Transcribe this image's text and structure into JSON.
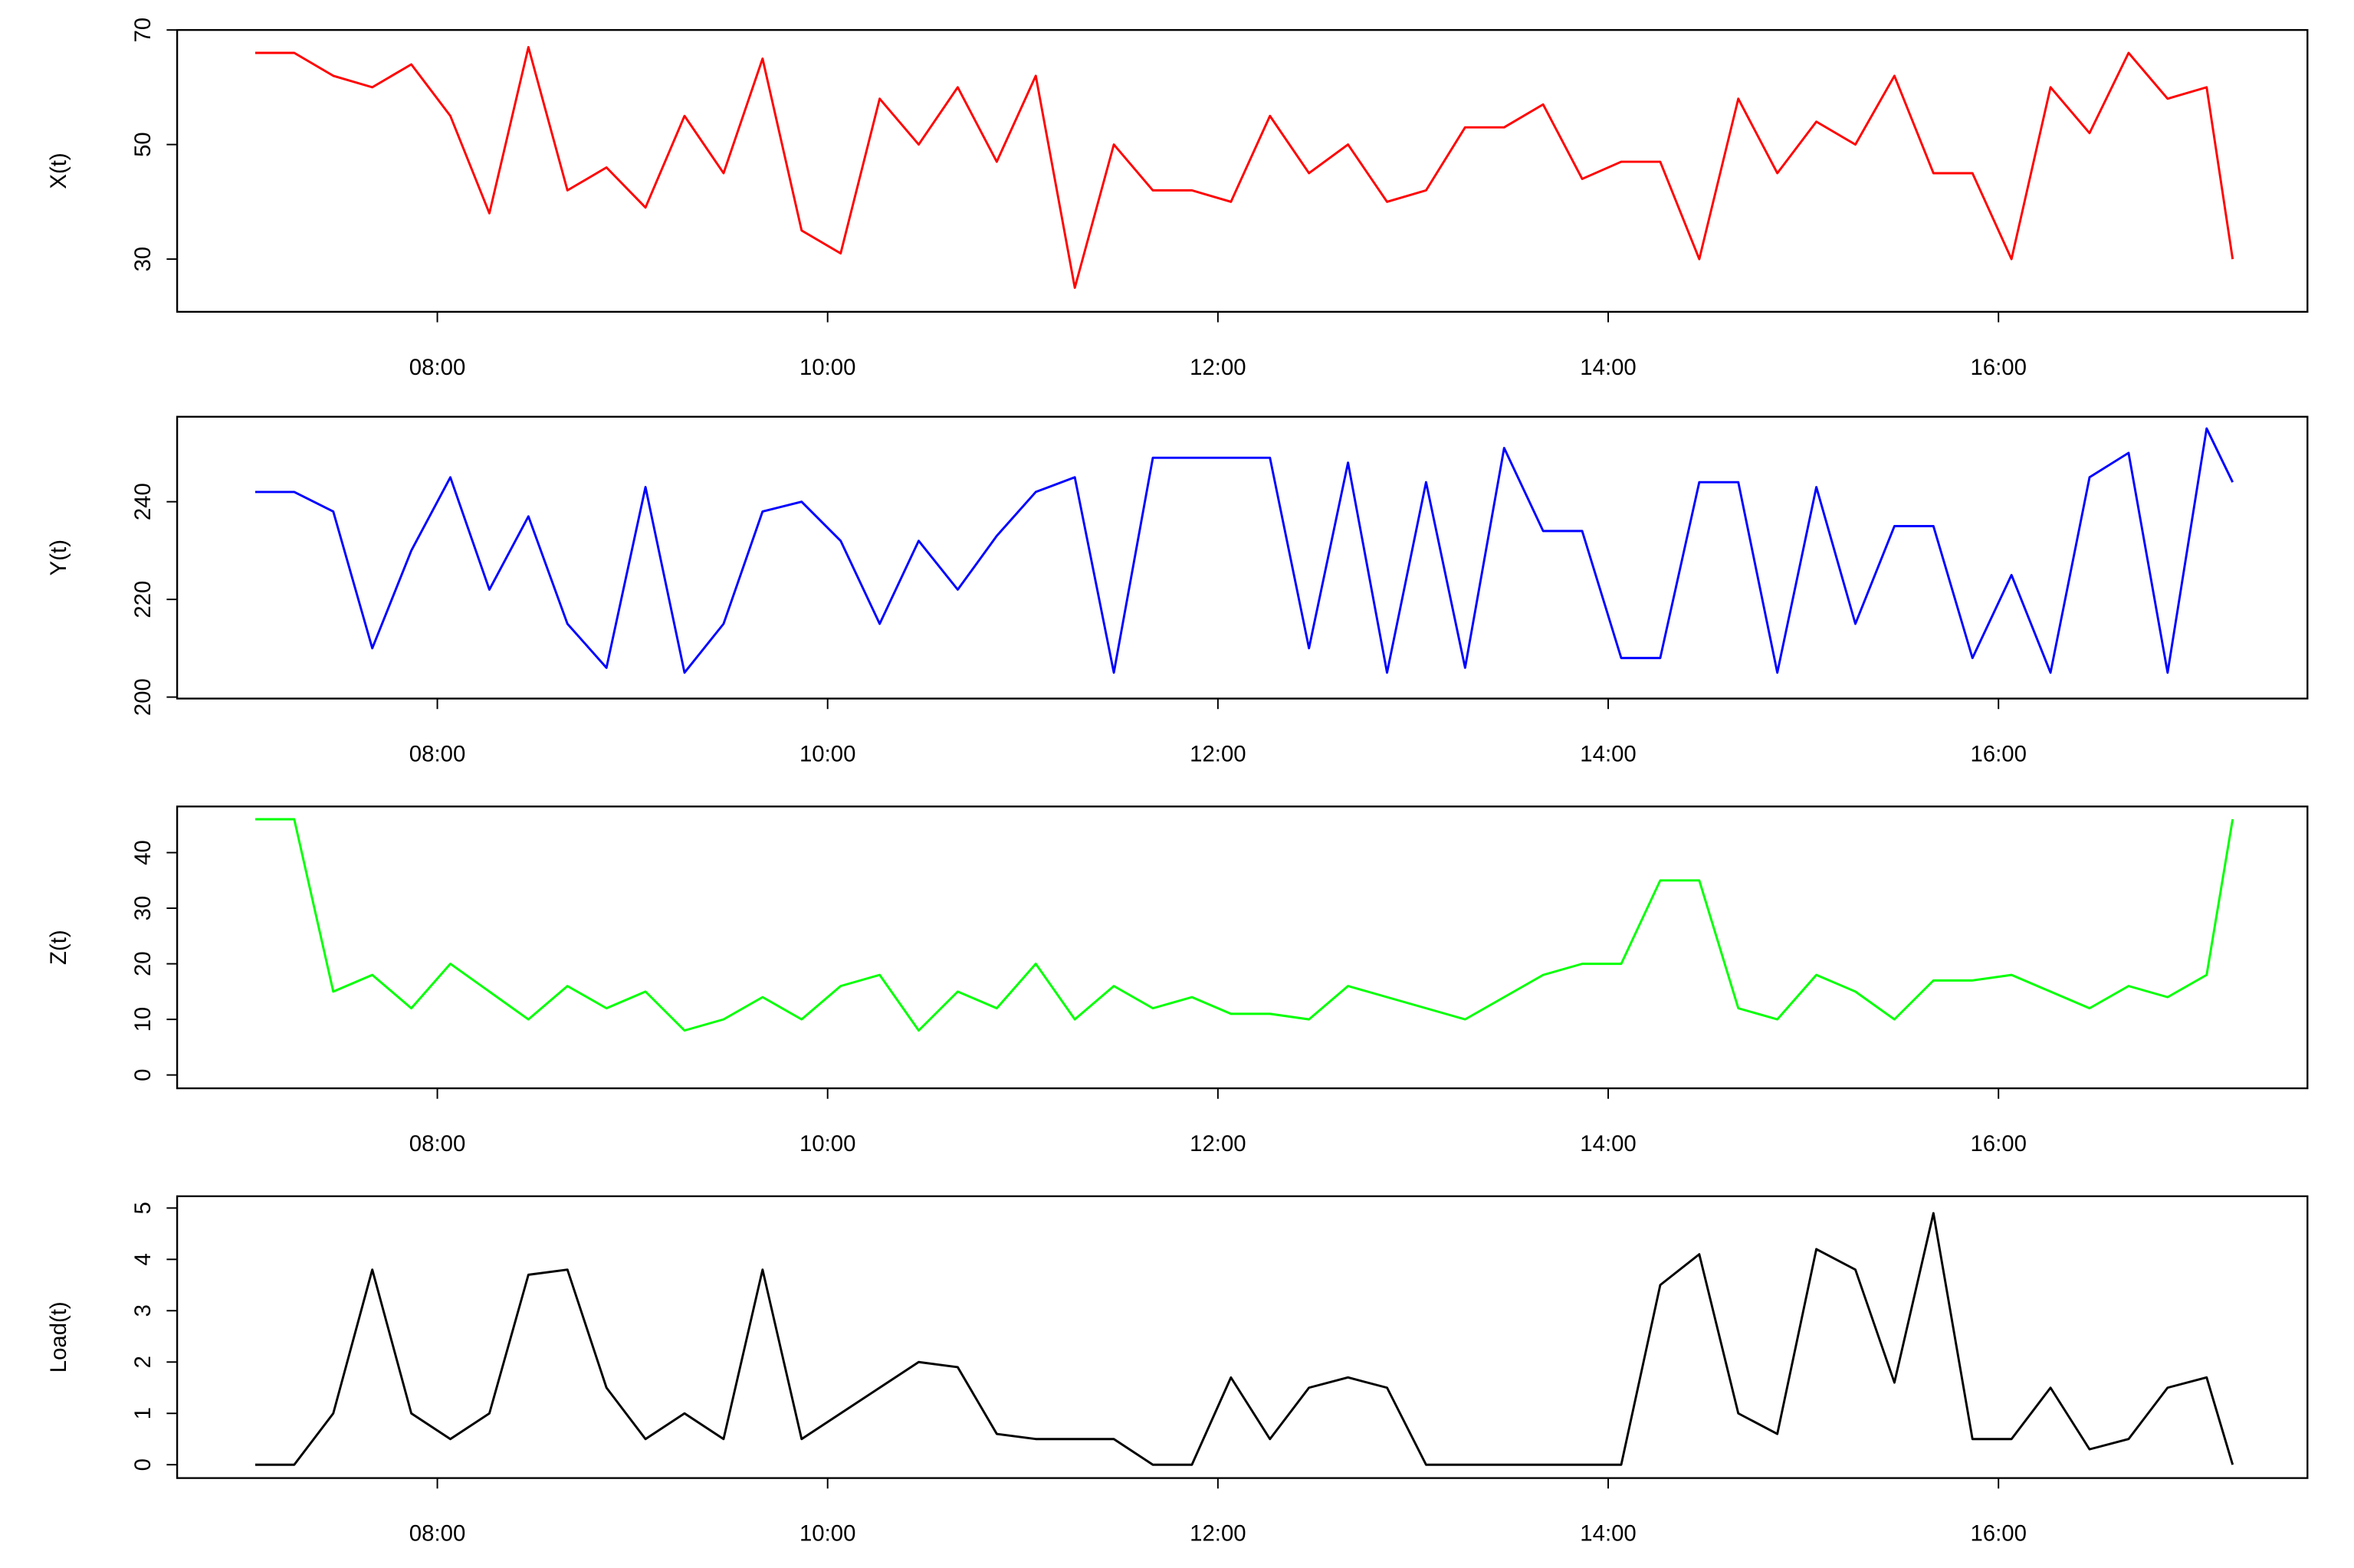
{
  "chart_data": [
    {
      "type": "line",
      "ylabel": "X(t)",
      "color": "#ff0000",
      "x": [
        424,
        436,
        448,
        460,
        472,
        484,
        496,
        508,
        520,
        532,
        544,
        556,
        568,
        580,
        592,
        604,
        616,
        628,
        640,
        652,
        664,
        676,
        688,
        700,
        712,
        724,
        736,
        748,
        760,
        772,
        784,
        796,
        808,
        820,
        832,
        844,
        856,
        868,
        880,
        892,
        904,
        916,
        928,
        940,
        952,
        964,
        976,
        988,
        1000,
        1012,
        1024,
        1032
      ],
      "values": [
        66,
        66,
        62,
        60,
        64,
        55,
        38,
        67,
        42,
        46,
        39,
        55,
        45,
        65,
        35,
        31,
        58,
        50,
        60,
        47,
        62,
        25,
        50,
        42,
        42,
        40,
        55,
        45,
        50,
        40,
        42,
        53,
        53,
        57,
        44,
        47,
        47,
        30,
        58,
        45,
        54,
        50,
        62,
        45,
        45,
        30,
        60,
        52,
        66,
        58,
        60,
        30
      ],
      "xlim": [
        400,
        1055
      ],
      "ylim": [
        20.8,
        70
      ],
      "yticks": [
        30,
        50,
        70
      ],
      "xticks": [
        {
          "value": 480,
          "label": "08:00"
        },
        {
          "value": 600,
          "label": "10:00"
        },
        {
          "value": 720,
          "label": "12:00"
        },
        {
          "value": 840,
          "label": "14:00"
        },
        {
          "value": 960,
          "label": "16:00"
        }
      ]
    },
    {
      "type": "line",
      "ylabel": "Y(t)",
      "color": "#0000ff",
      "x": [
        424,
        436,
        448,
        460,
        472,
        484,
        496,
        508,
        520,
        532,
        544,
        556,
        568,
        580,
        592,
        604,
        616,
        628,
        640,
        652,
        664,
        676,
        688,
        700,
        712,
        724,
        736,
        748,
        760,
        772,
        784,
        796,
        808,
        820,
        832,
        844,
        856,
        868,
        880,
        892,
        904,
        916,
        928,
        940,
        952,
        964,
        976,
        988,
        1000,
        1012,
        1024,
        1032
      ],
      "values": [
        242,
        242,
        238,
        210,
        230,
        245,
        222,
        237,
        215,
        206,
        243,
        205,
        215,
        238,
        240,
        232,
        215,
        232,
        222,
        233,
        242,
        245,
        205,
        249,
        249,
        249,
        249,
        210,
        248,
        205,
        244,
        206,
        251,
        234,
        234,
        208,
        208,
        244,
        244,
        205,
        243,
        215,
        235,
        235,
        208,
        225,
        205,
        245,
        250,
        205,
        255,
        244
      ],
      "xlim": [
        400,
        1055
      ],
      "ylim": [
        199.7,
        257.4
      ],
      "yticks": [
        200,
        220,
        240
      ],
      "xticks": [
        {
          "value": 480,
          "label": "08:00"
        },
        {
          "value": 600,
          "label": "10:00"
        },
        {
          "value": 720,
          "label": "12:00"
        },
        {
          "value": 840,
          "label": "14:00"
        },
        {
          "value": 960,
          "label": "16:00"
        }
      ]
    },
    {
      "type": "line",
      "ylabel": "Z(t)",
      "color": "#00ff00",
      "x": [
        424,
        436,
        448,
        460,
        472,
        484,
        496,
        508,
        520,
        532,
        544,
        556,
        568,
        580,
        592,
        604,
        616,
        628,
        640,
        652,
        664,
        676,
        688,
        700,
        712,
        724,
        736,
        748,
        760,
        772,
        784,
        796,
        808,
        820,
        832,
        844,
        856,
        868,
        880,
        892,
        904,
        916,
        928,
        940,
        952,
        964,
        976,
        988,
        1000,
        1012,
        1024,
        1032
      ],
      "values": [
        46,
        46,
        15,
        18,
        12,
        20,
        15,
        10,
        16,
        12,
        15,
        8,
        10,
        14,
        10,
        16,
        18,
        8,
        15,
        12,
        20,
        10,
        16,
        12,
        14,
        11,
        11,
        10,
        16,
        14,
        12,
        10,
        14,
        18,
        20,
        20,
        35,
        35,
        12,
        10,
        18,
        15,
        10,
        17,
        17,
        18,
        15,
        12,
        16,
        14,
        18,
        46
      ],
      "xlim": [
        400,
        1055
      ],
      "ylim": [
        -2.4,
        48.3
      ],
      "yticks": [
        0,
        10,
        20,
        30,
        40
      ],
      "xticks": [
        {
          "value": 480,
          "label": "08:00"
        },
        {
          "value": 600,
          "label": "10:00"
        },
        {
          "value": 720,
          "label": "12:00"
        },
        {
          "value": 840,
          "label": "14:00"
        },
        {
          "value": 960,
          "label": "16:00"
        }
      ]
    },
    {
      "type": "line",
      "ylabel": "Load(t)",
      "color": "#000000",
      "x": [
        424,
        436,
        448,
        460,
        472,
        484,
        496,
        508,
        520,
        532,
        544,
        556,
        568,
        580,
        592,
        604,
        616,
        628,
        640,
        652,
        664,
        676,
        688,
        700,
        712,
        724,
        736,
        748,
        760,
        772,
        784,
        796,
        808,
        820,
        832,
        844,
        856,
        868,
        880,
        892,
        904,
        916,
        928,
        940,
        952,
        964,
        976,
        988,
        1000,
        1012,
        1024,
        1032
      ],
      "values": [
        0,
        0,
        1,
        3.8,
        1,
        0.5,
        1,
        3.7,
        3.8,
        1.5,
        0.5,
        1,
        0.5,
        3.8,
        0.5,
        1,
        1.5,
        2,
        1.9,
        0.6,
        0.5,
        0.5,
        0.5,
        0,
        0,
        1.7,
        0.5,
        1.5,
        1.7,
        1.5,
        0,
        0,
        0,
        0,
        0,
        0,
        3.5,
        4.1,
        1,
        0.6,
        4.2,
        3.8,
        1.6,
        4.9,
        0.5,
        0.5,
        1.5,
        0.3,
        0.5,
        1.5,
        1.7,
        0
      ],
      "xlim": [
        400,
        1055
      ],
      "ylim": [
        -0.26,
        5.23
      ],
      "yticks": [
        0,
        1,
        2,
        3,
        4,
        5
      ],
      "xticks": [
        {
          "value": 480,
          "label": "08:00"
        },
        {
          "value": 600,
          "label": "10:00"
        },
        {
          "value": 720,
          "label": "12:00"
        },
        {
          "value": 840,
          "label": "14:00"
        },
        {
          "value": 960,
          "label": "16:00"
        }
      ]
    }
  ]
}
